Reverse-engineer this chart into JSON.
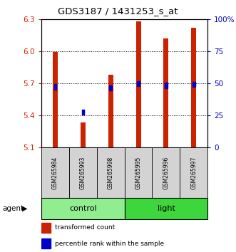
{
  "title": "GDS3187 / 1431253_s_at",
  "samples": [
    "GSM265984",
    "GSM265993",
    "GSM265998",
    "GSM265995",
    "GSM265996",
    "GSM265997"
  ],
  "groups": [
    {
      "name": "control",
      "indices": [
        0,
        1,
        2
      ],
      "color": "#90EE90"
    },
    {
      "name": "light",
      "indices": [
        3,
        4,
        5
      ],
      "color": "#3DD63D"
    }
  ],
  "bar_bottom": 5.1,
  "bar_tops": [
    5.99,
    5.33,
    5.78,
    6.28,
    6.12,
    6.22
  ],
  "percentile_values": [
    5.665,
    5.43,
    5.655,
    5.695,
    5.68,
    5.69
  ],
  "ylim": [
    5.1,
    6.3
  ],
  "yticks_left": [
    5.1,
    5.4,
    5.7,
    6.0,
    6.3
  ],
  "yticks_right_vals": [
    0,
    25,
    50,
    75,
    100
  ],
  "yticks_right_labels": [
    "0",
    "25",
    "50",
    "75",
    "100%"
  ],
  "bar_color": "#CC2200",
  "percentile_color": "#0000CC",
  "bar_width": 0.18,
  "axis_label_color_left": "#CC2200",
  "axis_label_color_right": "#0000BB"
}
